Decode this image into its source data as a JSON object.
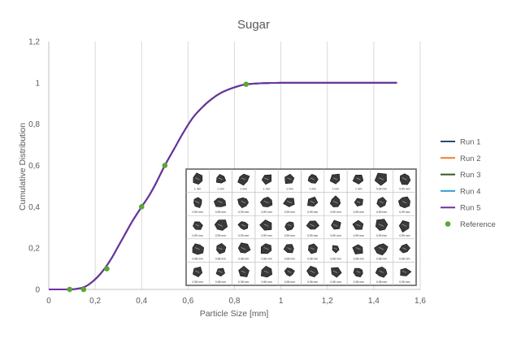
{
  "chart_data": {
    "type": "line",
    "title": "Sugar",
    "xlabel": "Particle Size [mm]",
    "ylabel": "Cumulative Distribution",
    "xlim": [
      0,
      1.6
    ],
    "ylim": [
      0,
      1.2
    ],
    "xticks": [
      0,
      0.2,
      0.4,
      0.6,
      0.8,
      1,
      1.2,
      1.4,
      1.6
    ],
    "yticks": [
      0,
      0.2,
      0.4,
      0.6,
      0.8,
      1,
      1.2
    ],
    "xtick_labels": [
      "0",
      "0,2",
      "0,4",
      "0,6",
      "0,8",
      "1",
      "1,2",
      "1,4",
      "1,6"
    ],
    "ytick_labels": [
      "0",
      "0,2",
      "0,4",
      "0,6",
      "0,8",
      "1",
      "1,2"
    ],
    "grid": "vertical",
    "legend_position": "right",
    "series": [
      {
        "name": "Run 1",
        "color": "#1f4e79",
        "x": [
          0,
          0.09,
          0.12,
          0.15,
          0.18,
          0.21,
          0.24,
          0.27,
          0.3,
          0.33,
          0.36,
          0.4,
          0.43,
          0.46,
          0.5,
          0.54,
          0.58,
          0.62,
          0.66,
          0.7,
          0.74,
          0.78,
          0.82,
          0.85,
          0.9,
          0.95,
          1,
          1.1,
          1.2,
          1.3,
          1.4,
          1.5
        ],
        "y": [
          0,
          0,
          0.003,
          0.01,
          0.03,
          0.06,
          0.1,
          0.15,
          0.21,
          0.27,
          0.33,
          0.4,
          0.45,
          0.51,
          0.6,
          0.68,
          0.76,
          0.83,
          0.88,
          0.92,
          0.95,
          0.97,
          0.985,
          0.993,
          0.997,
          0.999,
          1,
          1,
          1,
          1,
          1,
          1
        ]
      },
      {
        "name": "Run 2",
        "color": "#ed7d31",
        "x": [
          0,
          0.09,
          0.12,
          0.15,
          0.18,
          0.21,
          0.24,
          0.27,
          0.3,
          0.33,
          0.36,
          0.4,
          0.43,
          0.46,
          0.5,
          0.54,
          0.58,
          0.62,
          0.66,
          0.7,
          0.74,
          0.78,
          0.82,
          0.85,
          0.9,
          0.95,
          1,
          1.1,
          1.2,
          1.3,
          1.4,
          1.5
        ],
        "y": [
          0,
          0,
          0.003,
          0.01,
          0.03,
          0.06,
          0.1,
          0.15,
          0.21,
          0.27,
          0.33,
          0.4,
          0.45,
          0.51,
          0.6,
          0.68,
          0.76,
          0.83,
          0.88,
          0.92,
          0.95,
          0.97,
          0.985,
          0.993,
          0.997,
          0.999,
          1,
          1,
          1,
          1,
          1,
          1
        ]
      },
      {
        "name": "Run 3",
        "color": "#375623",
        "x": [
          0,
          0.09,
          0.12,
          0.15,
          0.18,
          0.21,
          0.24,
          0.27,
          0.3,
          0.33,
          0.36,
          0.4,
          0.43,
          0.46,
          0.5,
          0.54,
          0.58,
          0.62,
          0.66,
          0.7,
          0.74,
          0.78,
          0.82,
          0.85,
          0.9,
          0.95,
          1,
          1.1,
          1.2,
          1.3,
          1.4,
          1.5
        ],
        "y": [
          0,
          0,
          0.003,
          0.01,
          0.03,
          0.06,
          0.1,
          0.15,
          0.21,
          0.27,
          0.33,
          0.4,
          0.45,
          0.51,
          0.6,
          0.68,
          0.76,
          0.83,
          0.88,
          0.92,
          0.95,
          0.97,
          0.985,
          0.993,
          0.997,
          0.999,
          1,
          1,
          1,
          1,
          1,
          1
        ]
      },
      {
        "name": "Run 4",
        "color": "#2e9fd8",
        "x": [
          0,
          0.09,
          0.12,
          0.15,
          0.18,
          0.21,
          0.24,
          0.27,
          0.3,
          0.33,
          0.36,
          0.4,
          0.43,
          0.46,
          0.5,
          0.54,
          0.58,
          0.62,
          0.66,
          0.7,
          0.74,
          0.78,
          0.82,
          0.85,
          0.9,
          0.95,
          1,
          1.1,
          1.2,
          1.3,
          1.4,
          1.5
        ],
        "y": [
          0,
          0,
          0.003,
          0.01,
          0.03,
          0.06,
          0.1,
          0.15,
          0.21,
          0.27,
          0.33,
          0.4,
          0.45,
          0.51,
          0.6,
          0.68,
          0.76,
          0.83,
          0.88,
          0.92,
          0.95,
          0.97,
          0.985,
          0.993,
          0.997,
          0.999,
          1,
          1,
          1,
          1,
          1,
          1
        ]
      },
      {
        "name": "Run 5",
        "color": "#7030a0",
        "x": [
          0,
          0.09,
          0.12,
          0.15,
          0.18,
          0.21,
          0.24,
          0.27,
          0.3,
          0.33,
          0.36,
          0.4,
          0.43,
          0.46,
          0.5,
          0.54,
          0.58,
          0.62,
          0.66,
          0.7,
          0.74,
          0.78,
          0.82,
          0.85,
          0.9,
          0.95,
          1,
          1.1,
          1.2,
          1.3,
          1.4,
          1.5
        ],
        "y": [
          0,
          0,
          0.003,
          0.01,
          0.03,
          0.06,
          0.1,
          0.15,
          0.21,
          0.27,
          0.33,
          0.4,
          0.45,
          0.51,
          0.6,
          0.68,
          0.76,
          0.83,
          0.88,
          0.92,
          0.95,
          0.97,
          0.985,
          0.993,
          0.997,
          0.999,
          1,
          1,
          1,
          1,
          1,
          1
        ]
      }
    ],
    "reference": {
      "name": "Reference",
      "color": "#5aa832",
      "points": [
        [
          0.09,
          0
        ],
        [
          0.15,
          0
        ],
        [
          0.25,
          0.1
        ],
        [
          0.4,
          0.4
        ],
        [
          0.5,
          0.6
        ],
        [
          0.85,
          0.993
        ]
      ]
    },
    "inset_image": {
      "rows": 5,
      "cols": 10,
      "labels": [
        [
          "1 mm",
          "1 mm",
          "1 mm",
          "1 mm",
          "1 mm",
          "1 mm",
          "1 mm",
          "1 mm",
          "0,99 mm",
          "0,99 mm"
        ],
        [
          "0,99 mm",
          "0,99 mm",
          "0,99 mm",
          "0,99 mm",
          "0,99 mm",
          "0,99 mm",
          "0,99 mm",
          "0,99 mm",
          "0,99 mm",
          "0,99 mm"
        ],
        [
          "0,99 mm",
          "0,99 mm",
          "0,99 mm",
          "0,99 mm",
          "0,99 mm",
          "0,99 mm",
          "0,99 mm",
          "0,99 mm",
          "0,99 mm",
          "0,99 mm"
        ],
        [
          "0,98 mm",
          "0,98 mm",
          "0,98 mm",
          "0,98 mm",
          "0,98 mm",
          "0,98 mm",
          "0,98 mm",
          "0,98 mm",
          "0,98 mm",
          "0,98 mm"
        ],
        [
          "0,98 mm",
          "0,98 mm",
          "0,98 mm",
          "0,98 mm",
          "0,98 mm",
          "0,98 mm",
          "0,98 mm",
          "0,98 mm",
          "0,98 mm",
          "0,98 mm"
        ]
      ]
    }
  }
}
